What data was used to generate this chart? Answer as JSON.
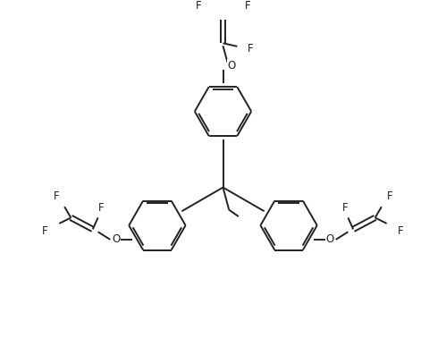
{
  "background": "#ffffff",
  "line_color": "#222222",
  "line_width": 1.4,
  "font_size": 8.5,
  "fig_width": 4.99,
  "fig_height": 3.78,
  "xlim": [
    -2.6,
    2.6
  ],
  "ylim": [
    -2.3,
    2.6
  ]
}
